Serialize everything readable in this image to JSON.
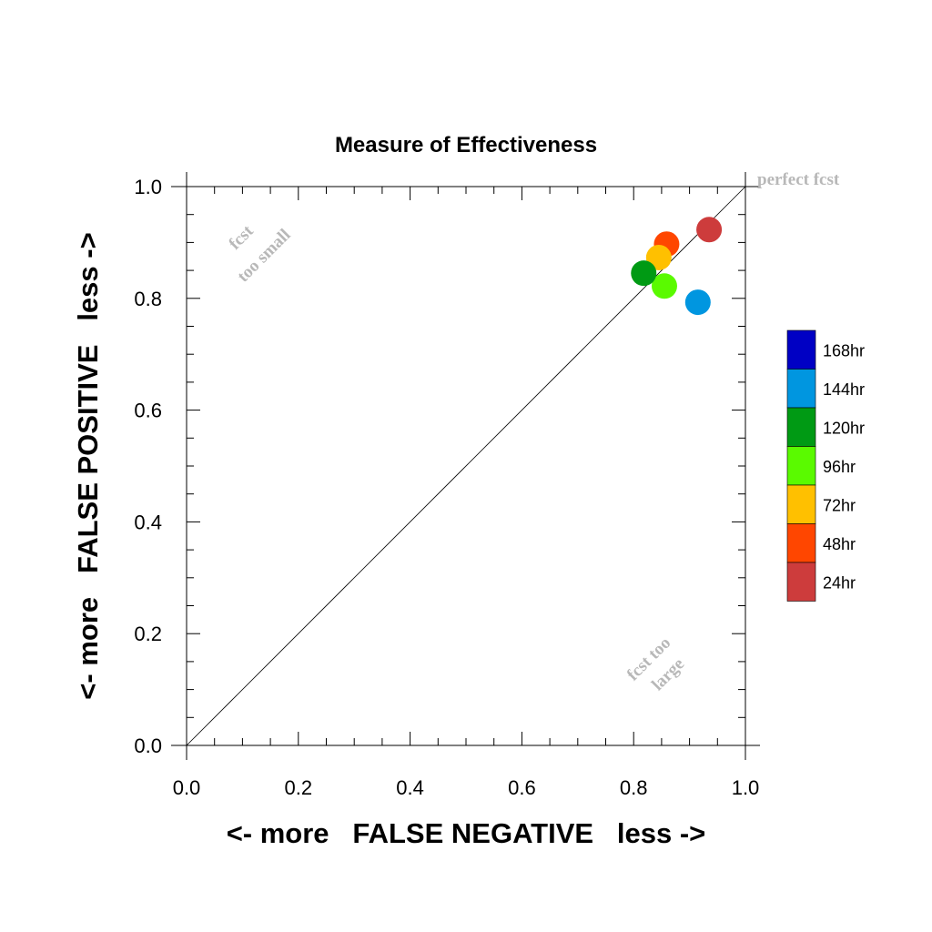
{
  "chart_data": {
    "type": "scatter",
    "title": "Measure of Effectiveness",
    "xlabel": "<- more   FALSE NEGATIVE   less ->",
    "ylabel": "<- more   FALSE POSITIVE   less ->",
    "xlim": [
      0,
      1
    ],
    "ylim": [
      0,
      1
    ],
    "x_ticks": [
      "0.0",
      "0.2",
      "0.4",
      "0.6",
      "0.8",
      "1.0"
    ],
    "y_ticks": [
      "0.0",
      "0.2",
      "0.4",
      "0.6",
      "0.8",
      "1.0"
    ],
    "grid": false,
    "diagonal_reference_line": true,
    "annotations": {
      "perfect": "perfect fcst",
      "small_line1": "fcst",
      "small_line2": "too small",
      "large_line1": "fcst too",
      "large_line2": "large"
    },
    "legend_placement": "right",
    "legend": [
      {
        "label": "168hr",
        "color": "#0000c4"
      },
      {
        "label": "144hr",
        "color": "#0096e0"
      },
      {
        "label": "120hr",
        "color": "#009a14"
      },
      {
        "label": "96hr",
        "color": "#5afa00"
      },
      {
        "label": "72hr",
        "color": "#ffc000"
      },
      {
        "label": "48hr",
        "color": "#ff4600"
      },
      {
        "label": "24hr",
        "color": "#cd3c3c"
      }
    ],
    "series": [
      {
        "name": "24hr",
        "color": "#cd3c3c",
        "x": 0.935,
        "y": 0.923
      },
      {
        "name": "48hr",
        "color": "#ff4600",
        "x": 0.859,
        "y": 0.897
      },
      {
        "name": "72hr",
        "color": "#ffc000",
        "x": 0.845,
        "y": 0.873
      },
      {
        "name": "96hr",
        "color": "#5afa00",
        "x": 0.855,
        "y": 0.822
      },
      {
        "name": "120hr",
        "color": "#009a14",
        "x": 0.818,
        "y": 0.845
      },
      {
        "name": "144hr",
        "color": "#0096e0",
        "x": 0.915,
        "y": 0.793
      }
    ]
  }
}
